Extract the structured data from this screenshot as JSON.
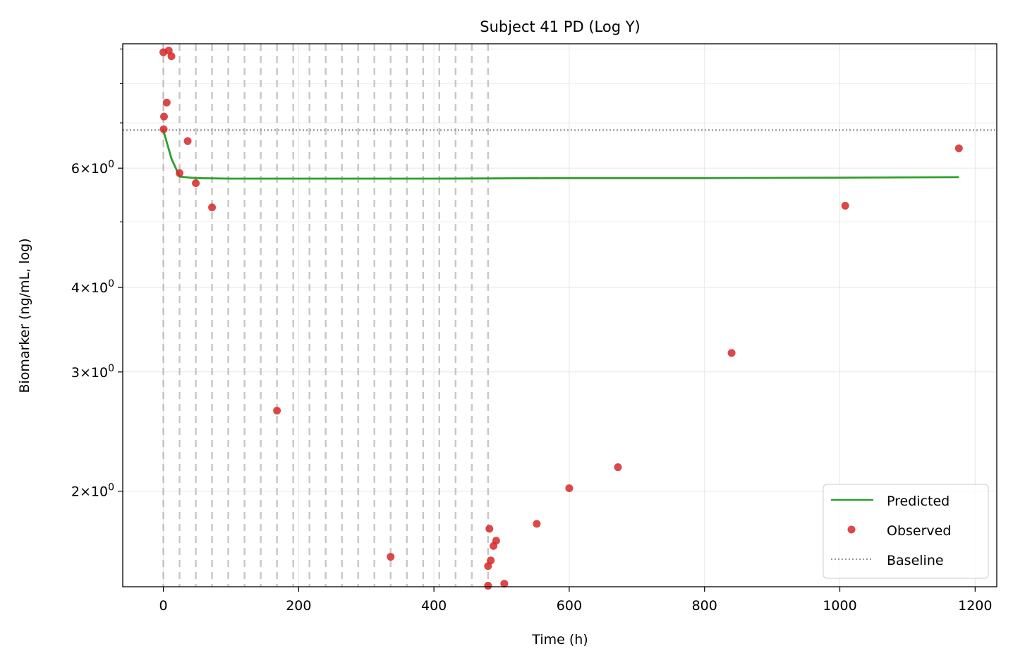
{
  "chart_data": {
    "type": "scatter",
    "title": "Subject 41 PD (Log Y)",
    "xlabel": "Time (h)",
    "ylabel": "Biomarker (ng/mL, log)",
    "xlim": [
      -60,
      1232
    ],
    "ylim": [
      1.445,
      9.16
    ],
    "yscale": "log",
    "x_ticks": [
      0,
      200,
      400,
      600,
      800,
      1000,
      1200
    ],
    "x_tick_labels": [
      "0",
      "200",
      "400",
      "600",
      "800",
      "1000",
      "1200"
    ],
    "y_major_ticks": [
      2,
      3,
      4,
      6
    ],
    "y_major_tick_labels": [
      "2",
      "3",
      "4",
      "6"
    ],
    "y_tick_base": "10",
    "y_tick_exponent": "0",
    "y_minor_ticks": [
      5,
      7,
      8,
      9
    ],
    "grid": true,
    "legend_position": "lower-right",
    "dose_times": [
      0,
      24,
      48,
      72,
      96,
      120,
      144,
      168,
      192,
      216,
      240,
      264,
      288,
      312,
      336,
      360,
      384,
      408,
      432,
      456,
      480
    ],
    "baseline": 6.83,
    "series": [
      {
        "name": "Predicted",
        "kind": "line",
        "color": "#2ca02c",
        "x": [
          0,
          12,
          24,
          48,
          100,
          200,
          400,
          600,
          800,
          1000,
          1176
        ],
        "y": [
          6.83,
          6.2,
          5.83,
          5.8,
          5.79,
          5.79,
          5.79,
          5.8,
          5.8,
          5.81,
          5.82
        ]
      },
      {
        "name": "Observed",
        "kind": "scatter",
        "color": "#d62728",
        "x": [
          0,
          8,
          12,
          1,
          5,
          0.5,
          36,
          24,
          48,
          72,
          168,
          336,
          480,
          482,
          484,
          480,
          488,
          492,
          504,
          552,
          600,
          672,
          840,
          1008,
          1176
        ],
        "y": [
          8.9,
          8.95,
          8.78,
          7.15,
          7.5,
          6.85,
          6.58,
          5.9,
          5.7,
          5.25,
          2.63,
          1.6,
          1.55,
          1.76,
          1.58,
          1.45,
          1.66,
          1.69,
          1.46,
          1.79,
          2.02,
          2.17,
          3.2,
          5.28,
          6.42
        ]
      },
      {
        "name": "Baseline",
        "kind": "hline",
        "color": "#999999"
      }
    ]
  }
}
